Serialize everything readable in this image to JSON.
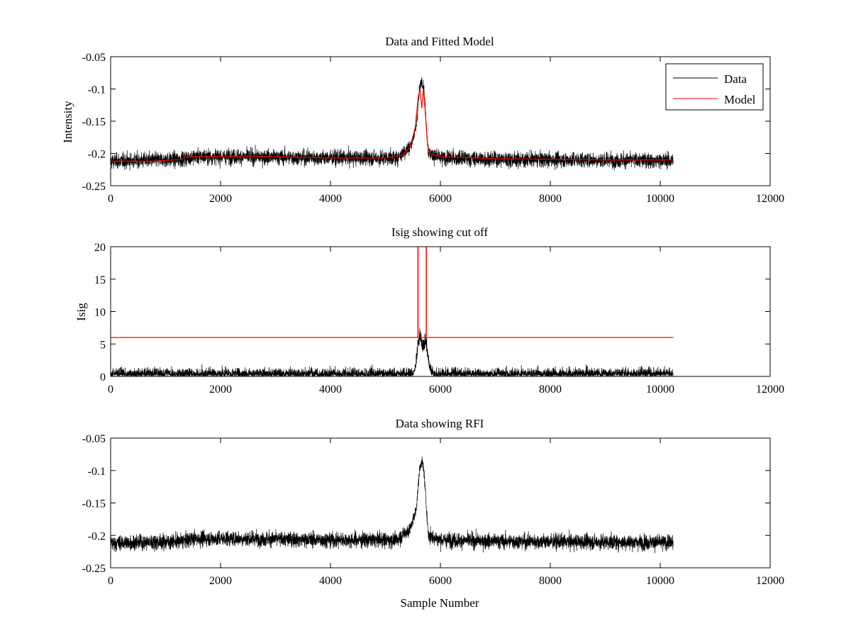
{
  "chart_data": [
    {
      "type": "line",
      "title": "Data and Fitted Model",
      "xlabel": "",
      "ylabel": "Intensity",
      "xlim": [
        0,
        12000
      ],
      "ylim": [
        -0.25,
        -0.05
      ],
      "y_reversed": true,
      "xticks": [
        0,
        2000,
        4000,
        6000,
        8000,
        10000,
        12000
      ],
      "yticks": [
        -0.25,
        -0.2,
        -0.15,
        -0.1,
        -0.05
      ],
      "xtick_labels": [
        "0",
        "2000",
        "4000",
        "6000",
        "8000",
        "10000",
        "12000"
      ],
      "ytick_labels": [
        "-0.25",
        "-0.2",
        "-0.15",
        "-0.1",
        "-0.05"
      ],
      "legend": {
        "location": "top-right",
        "entries": [
          "Data",
          "Model"
        ]
      },
      "series": [
        {
          "name": "Data",
          "color": "#000000",
          "kind": "noisy",
          "n_samples": 10240,
          "baseline": [
            [
              0,
              -0.212
            ],
            [
              1300,
              -0.209
            ],
            [
              1500,
              -0.205
            ],
            [
              2500,
              -0.205
            ],
            [
              4000,
              -0.207
            ],
            [
              5200,
              -0.207
            ],
            [
              5450,
              -0.19
            ],
            [
              5560,
              -0.16
            ],
            [
              5620,
              -0.1
            ],
            [
              5660,
              -0.085
            ],
            [
              5700,
              -0.1
            ],
            [
              5740,
              -0.15
            ],
            [
              5780,
              -0.2
            ],
            [
              6000,
              -0.207
            ],
            [
              7000,
              -0.209
            ],
            [
              8500,
              -0.21
            ],
            [
              10240,
              -0.211
            ]
          ],
          "noise_amplitude": 0.02
        },
        {
          "name": "Model",
          "color": "#ff0000",
          "kind": "line",
          "points": [
            [
              0,
              -0.212
            ],
            [
              800,
              -0.212
            ],
            [
              1300,
              -0.209
            ],
            [
              1350,
              -0.206
            ],
            [
              1500,
              -0.205
            ],
            [
              2500,
              -0.204
            ],
            [
              4000,
              -0.207
            ],
            [
              5000,
              -0.207
            ],
            [
              5300,
              -0.203
            ],
            [
              5450,
              -0.19
            ],
            [
              5540,
              -0.16
            ],
            [
              5600,
              -0.11
            ],
            [
              5630,
              -0.1
            ],
            [
              5660,
              -0.13
            ],
            [
              5690,
              -0.1
            ],
            [
              5720,
              -0.13
            ],
            [
              5760,
              -0.18
            ],
            [
              5800,
              -0.2
            ],
            [
              6000,
              -0.205
            ],
            [
              7000,
              -0.208
            ],
            [
              8000,
              -0.209
            ],
            [
              9000,
              -0.21
            ],
            [
              10240,
              -0.21
            ]
          ]
        }
      ]
    },
    {
      "type": "line",
      "title": "Isig showing cut off",
      "xlabel": "",
      "ylabel": "Isig",
      "xlim": [
        0,
        12000
      ],
      "ylim": [
        0,
        20
      ],
      "y_reversed": false,
      "xticks": [
        0,
        2000,
        4000,
        6000,
        8000,
        10000,
        12000
      ],
      "yticks": [
        0,
        5,
        10,
        15,
        20
      ],
      "xtick_labels": [
        "0",
        "2000",
        "4000",
        "6000",
        "8000",
        "10000",
        "12000"
      ],
      "ytick_labels": [
        "0",
        "5",
        "10",
        "15",
        "20"
      ],
      "series": [
        {
          "color": "#000000",
          "kind": "abs_noise",
          "n_samples": 10240,
          "noise_amplitude": 2.2,
          "peaks": [
            [
              5620,
              7
            ],
            [
              5730,
              6
            ]
          ]
        },
        {
          "color": "#ff0000",
          "kind": "line",
          "points": [
            [
              0,
              6
            ],
            [
              5590,
              6
            ],
            [
              5590,
              20
            ],
            [
              5595,
              20
            ],
            [
              5595,
              6
            ],
            [
              5740,
              6
            ],
            [
              5740,
              20
            ],
            [
              5745,
              20
            ],
            [
              5745,
              6
            ],
            [
              10240,
              6
            ]
          ]
        }
      ]
    },
    {
      "type": "line",
      "title": "Data showing RFI",
      "xlabel": "Sample Number",
      "ylabel": "",
      "xlim": [
        0,
        12000
      ],
      "ylim": [
        -0.25,
        -0.05
      ],
      "y_reversed": true,
      "xticks": [
        0,
        2000,
        4000,
        6000,
        8000,
        10000,
        12000
      ],
      "yticks": [
        -0.25,
        -0.2,
        -0.15,
        -0.1,
        -0.05
      ],
      "xtick_labels": [
        "0",
        "2000",
        "4000",
        "6000",
        "8000",
        "10000",
        "12000"
      ],
      "ytick_labels": [
        "-0.25",
        "-0.2",
        "-0.15",
        "-0.1",
        "-0.05"
      ],
      "series": [
        {
          "color": "#000000",
          "kind": "noisy",
          "n_samples": 10240,
          "baseline": [
            [
              0,
              -0.212
            ],
            [
              1300,
              -0.209
            ],
            [
              1500,
              -0.205
            ],
            [
              2500,
              -0.205
            ],
            [
              4000,
              -0.207
            ],
            [
              5200,
              -0.207
            ],
            [
              5450,
              -0.19
            ],
            [
              5560,
              -0.16
            ],
            [
              5620,
              -0.1
            ],
            [
              5660,
              -0.085
            ],
            [
              5700,
              -0.1
            ],
            [
              5740,
              -0.15
            ],
            [
              5780,
              -0.2
            ],
            [
              6000,
              -0.207
            ],
            [
              7000,
              -0.209
            ],
            [
              8500,
              -0.21
            ],
            [
              10240,
              -0.211
            ]
          ],
          "noise_amplitude": 0.02
        }
      ]
    }
  ]
}
